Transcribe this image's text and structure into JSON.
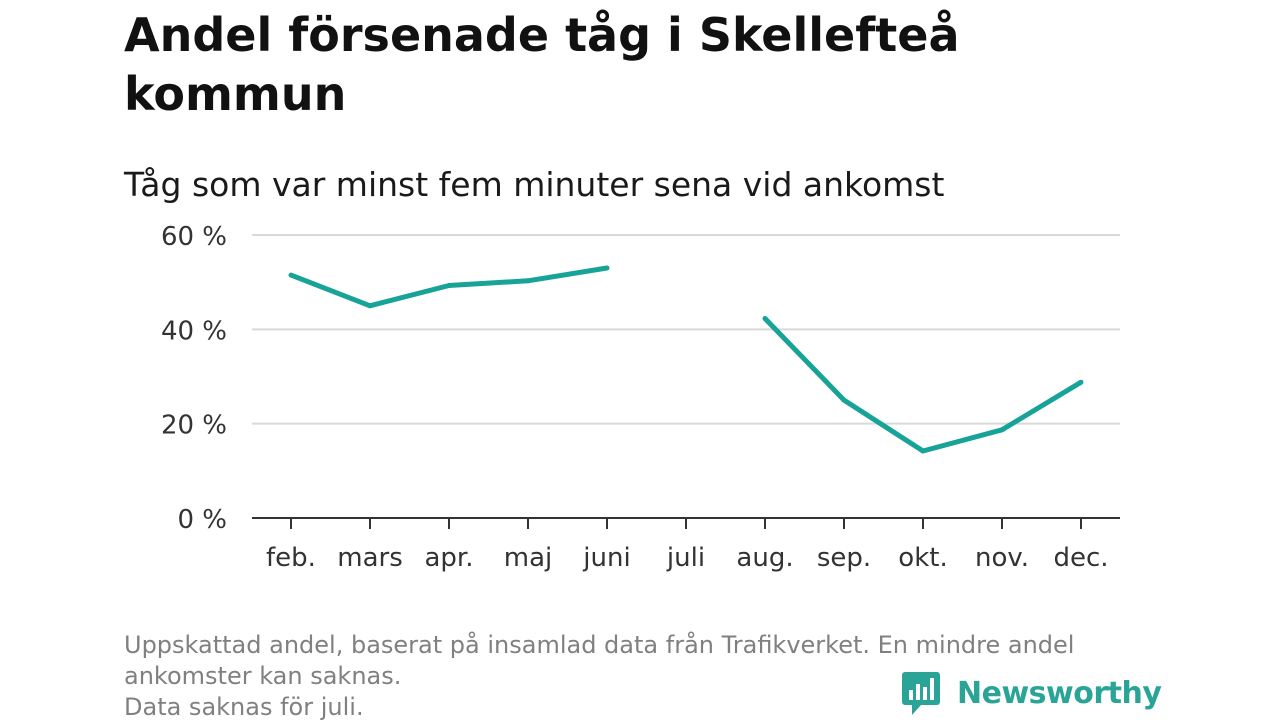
{
  "chart_data": {
    "type": "line",
    "title": "Andel försenade tåg i Skellefteå kommun",
    "subtitle": "Tåg som var minst fem minuter sena vid ankomst",
    "categories": [
      "feb.",
      "mars",
      "apr.",
      "maj",
      "juni",
      "juli",
      "aug.",
      "sep.",
      "okt.",
      "nov.",
      "dec."
    ],
    "series": [
      {
        "name": "Andel försenade tåg",
        "values": [
          51.5,
          45,
          49.3,
          50.3,
          53,
          null,
          42.3,
          25,
          14.2,
          18.7,
          28.8
        ]
      }
    ],
    "ylim": [
      0,
      60
    ],
    "yticks": [
      0,
      20,
      40,
      60
    ],
    "ytick_labels": [
      "0 %",
      "20 %",
      "40 %",
      "60 %"
    ],
    "xlabel": "",
    "ylabel": "",
    "grid": true,
    "line_color": "#17a398"
  },
  "footer": {
    "note_line1": "Uppskattad andel, baserat på insamlad data från Trafikverket. En mindre andel",
    "note_line2": "ankomster kan saknas.",
    "note_line3": "Data saknas för juli.",
    "brand": "Newsworthy",
    "brand_color": "#2aa497",
    "logo_icon": "bar-chart-speech-bubble-icon"
  }
}
